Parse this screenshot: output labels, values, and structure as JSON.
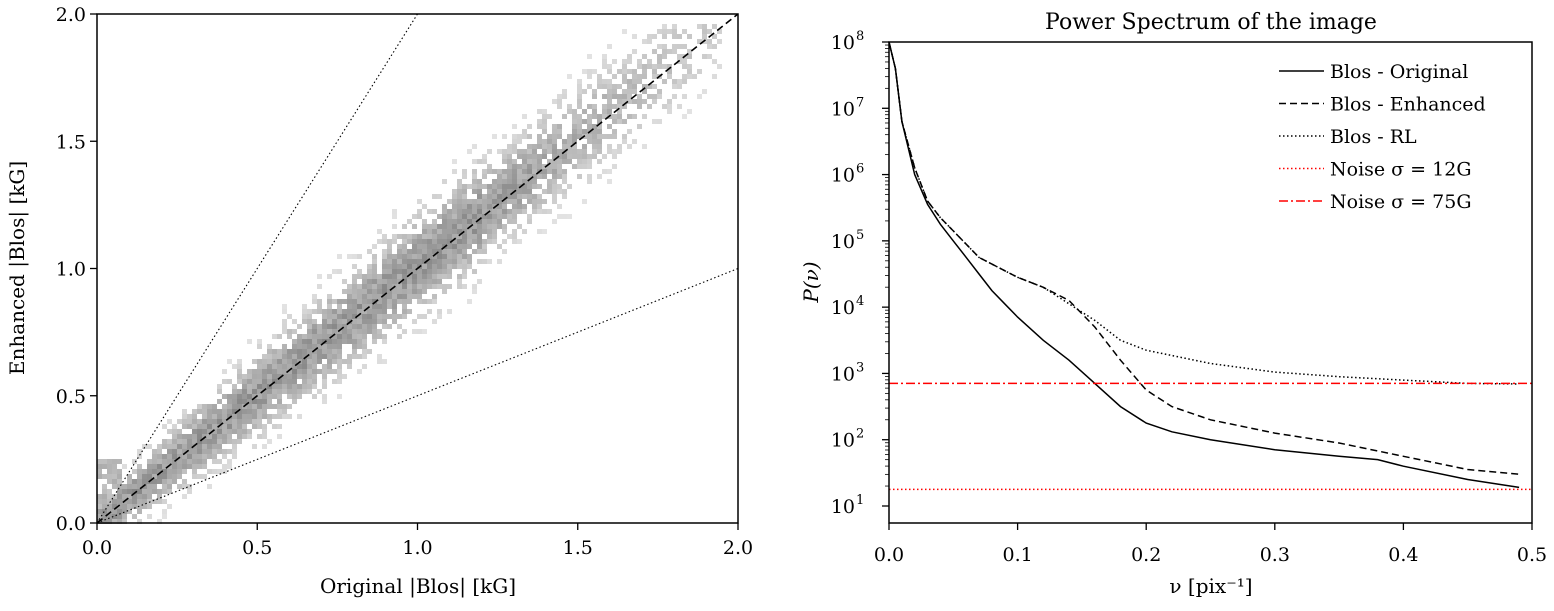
{
  "chart_data": [
    {
      "type": "scatter",
      "panel": "left",
      "title": "",
      "xlabel": "Original |Blos| [kG]",
      "ylabel": "Enhanced |Blos| [kG]",
      "xlim": [
        0.0,
        2.0
      ],
      "ylim": [
        0.0,
        2.0
      ],
      "xticks": [
        "0.0",
        "0.5",
        "1.0",
        "1.5",
        "2.0"
      ],
      "yticks": [
        "0.0",
        "0.5",
        "1.0",
        "1.5",
        "2.0"
      ],
      "grid": false,
      "density_color": "#a0a0a0",
      "reference_lines": [
        {
          "style": "dashed",
          "x": [
            0.0,
            2.0
          ],
          "y": [
            0.0,
            2.0
          ]
        },
        {
          "style": "dotted",
          "x": [
            0.0,
            1.0
          ],
          "y": [
            0.0,
            2.0
          ]
        },
        {
          "style": "dotted",
          "x": [
            0.0,
            2.0
          ],
          "y": [
            0.0,
            1.0
          ]
        }
      ]
    },
    {
      "type": "line",
      "panel": "right",
      "title": "Power Spectrum of the image",
      "xlabel": "ν [pix⁻¹]",
      "ylabel": "P(ν)",
      "xlim": [
        0.0,
        0.5
      ],
      "ylim_log10": [
        1,
        8
      ],
      "yscale": "log",
      "xticks": [
        "0.0",
        "0.1",
        "0.2",
        "0.3",
        "0.4",
        "0.5"
      ],
      "yticks": [
        {
          "base": "10",
          "exp": "1"
        },
        {
          "base": "10",
          "exp": "2"
        },
        {
          "base": "10",
          "exp": "3"
        },
        {
          "base": "10",
          "exp": "4"
        },
        {
          "base": "10",
          "exp": "5"
        },
        {
          "base": "10",
          "exp": "6"
        },
        {
          "base": "10",
          "exp": "7"
        },
        {
          "base": "10",
          "exp": "8"
        }
      ],
      "grid": false,
      "legend_position": "top-right",
      "series": [
        {
          "name": "Blos - Original",
          "style": "solid",
          "color": "#000000",
          "x": [
            0.0,
            0.005,
            0.01,
            0.02,
            0.03,
            0.04,
            0.05,
            0.06,
            0.07,
            0.08,
            0.09,
            0.1,
            0.12,
            0.14,
            0.16,
            0.18,
            0.2,
            0.22,
            0.25,
            0.3,
            0.35,
            0.38,
            0.4,
            0.45,
            0.49
          ],
          "log10_y": [
            8.0,
            7.6,
            6.8,
            6.0,
            5.55,
            5.25,
            5.0,
            4.75,
            4.5,
            4.25,
            4.05,
            3.85,
            3.5,
            3.2,
            2.85,
            2.5,
            2.25,
            2.12,
            2.0,
            1.85,
            1.75,
            1.7,
            1.6,
            1.4,
            1.28
          ]
        },
        {
          "name": "Blos - Enhanced",
          "style": "dashed",
          "color": "#000000",
          "x": [
            0.0,
            0.005,
            0.01,
            0.02,
            0.03,
            0.04,
            0.05,
            0.06,
            0.07,
            0.08,
            0.09,
            0.1,
            0.12,
            0.14,
            0.16,
            0.18,
            0.2,
            0.22,
            0.25,
            0.3,
            0.35,
            0.4,
            0.45,
            0.49
          ],
          "log10_y": [
            8.0,
            7.6,
            6.8,
            6.1,
            5.6,
            5.35,
            5.15,
            4.95,
            4.75,
            4.65,
            4.55,
            4.45,
            4.3,
            4.1,
            3.7,
            3.2,
            2.75,
            2.5,
            2.3,
            2.1,
            1.95,
            1.75,
            1.55,
            1.48
          ]
        },
        {
          "name": "Blos - RL",
          "style": "dotted",
          "color": "#000000",
          "x": [
            0.0,
            0.005,
            0.01,
            0.02,
            0.03,
            0.04,
            0.05,
            0.06,
            0.07,
            0.08,
            0.09,
            0.1,
            0.12,
            0.14,
            0.16,
            0.18,
            0.2,
            0.25,
            0.3,
            0.35,
            0.4,
            0.45,
            0.49
          ],
          "log10_y": [
            8.0,
            7.6,
            6.8,
            6.1,
            5.6,
            5.35,
            5.15,
            4.95,
            4.75,
            4.65,
            4.55,
            4.45,
            4.3,
            4.05,
            3.8,
            3.5,
            3.35,
            3.15,
            3.02,
            2.95,
            2.9,
            2.85,
            2.84
          ]
        },
        {
          "name": "Noise σ = 12G",
          "style": "dotted",
          "color": "#ff0000",
          "x": [
            0.0,
            0.5
          ],
          "log10_y": [
            1.25,
            1.25
          ]
        },
        {
          "name": "Noise σ = 75G",
          "style": "dashdot",
          "color": "#ff0000",
          "x": [
            0.0,
            0.5
          ],
          "log10_y": [
            2.85,
            2.85
          ]
        }
      ]
    }
  ]
}
